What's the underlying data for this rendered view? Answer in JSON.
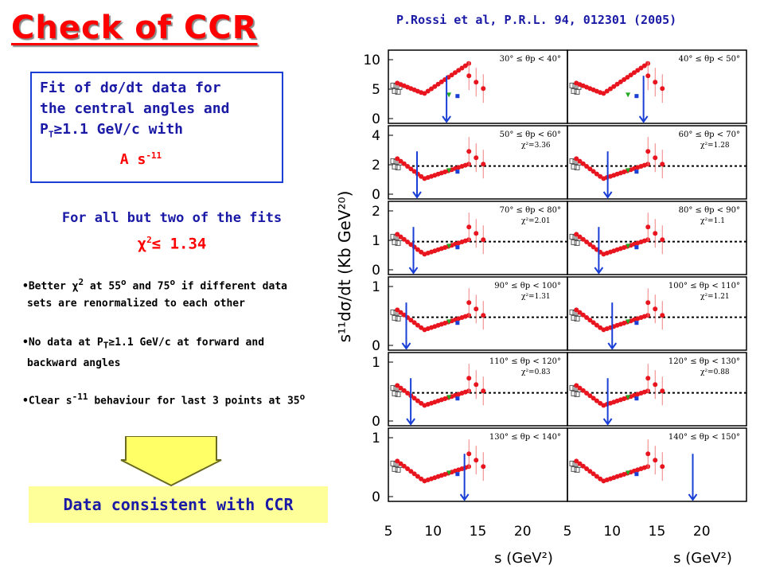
{
  "title": "Check of CCR",
  "citation": "P.Rossi et al, P.R.L. 94, 012301 (2005)",
  "fitbox": {
    "line1": "Fit of dσ/dt data for",
    "line2": "the central angles and",
    "line3_pre": "P",
    "line3_sub": "T",
    "line3_post": "≥1.1 GeV/c with",
    "line4_pre": "A s",
    "line4_sup": "-11"
  },
  "allbut": {
    "line1": "For all but two of the fits",
    "chi": "χ",
    "chi_sup": "2",
    "chi_rest": "≤ 1.34"
  },
  "bullets": [
    {
      "line1": "•Better χ² at 55° and 75° if different data",
      "line2": " sets are renormalized to each other"
    },
    {
      "line1": "•No data at P_T≥1.1 GeV/c at forward and",
      "line2": " backward angles"
    },
    {
      "line1": "•Clear s⁻¹¹ behaviour for last 3 points at 35°"
    }
  ],
  "bullet_parts": {
    "b1a": "•Better ",
    "b1chi": "χ",
    "b1sup": "2",
    "b1b": " at 55",
    "b1deg": "o",
    "b1c": " and 75",
    "b1deg2": "o",
    "b1d": " if different data",
    "b1line2": "sets are renormalized to each other",
    "b2a": "•No data at P",
    "b2sub": "T",
    "b2b": "≥1.1 GeV/c at forward and",
    "b2line2": "backward angles",
    "b3a": "•Clear s",
    "b3sup": "-11",
    "b3b": " behaviour for last 3 points at 35",
    "b3deg": "o"
  },
  "conclusion": "Data consistent with CCR",
  "plot": {
    "ylabel": "s¹¹dσ/dt (Kb GeV²⁰)",
    "xlabel": "s (GeV²)",
    "xticks": [
      "5",
      "10",
      "15",
      "20"
    ],
    "panels": [
      {
        "label": "30° ≤ θp < 40°",
        "chi2": "",
        "yticks": [
          "0",
          "5",
          "10"
        ]
      },
      {
        "label": "40° ≤ θp < 50°",
        "chi2": "",
        "yticks": []
      },
      {
        "label": "50° ≤ θp < 60°",
        "chi2": "χ²=3.36",
        "yticks": [
          "0",
          "2",
          "4"
        ]
      },
      {
        "label": "60° ≤ θp < 70°",
        "chi2": "χ²=1.28",
        "yticks": []
      },
      {
        "label": "70° ≤ θp < 80°",
        "chi2": "χ²=2.01",
        "yticks": [
          "0",
          "1",
          "2"
        ]
      },
      {
        "label": "80° ≤ θp < 90°",
        "chi2": "χ²=1.1",
        "yticks": []
      },
      {
        "label": "90° ≤ θp < 100°",
        "chi2": "χ²=1.31",
        "yticks": [
          "0",
          "1"
        ]
      },
      {
        "label": "100° ≤ θp < 110°",
        "chi2": "χ²=1.21",
        "yticks": []
      },
      {
        "label": "110° ≤ θp < 120°",
        "chi2": "χ²=0.83",
        "yticks": [
          "0",
          "1"
        ]
      },
      {
        "label": "120° ≤ θp < 130°",
        "chi2": "χ²=0.88",
        "yticks": []
      },
      {
        "label": "130° ≤ θp < 140°",
        "chi2": "",
        "yticks": [
          "0",
          "1"
        ]
      },
      {
        "label": "140° ≤ θp < 150°",
        "chi2": "",
        "yticks": []
      }
    ]
  },
  "colors": {
    "title": "#ff0000",
    "text_blue": "#1a1aa6",
    "box_border": "#1a3fd6",
    "conclusion_bg": "#ffff99",
    "points": "#e8141e",
    "arrow": "#1a3fd6"
  }
}
